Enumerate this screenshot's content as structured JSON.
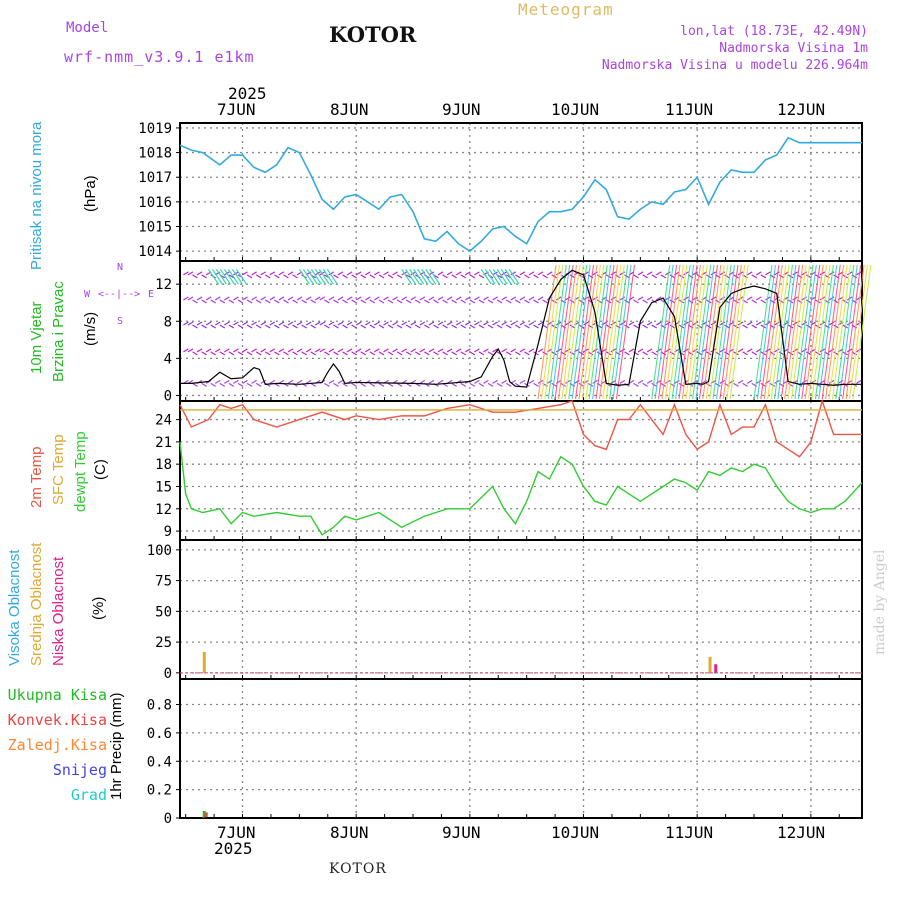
{
  "header": {
    "model_label": "Model",
    "model_name": "wrf-nmm_v3.9.1 e1km",
    "title": "KOTOR",
    "subtitle": "Meteogram",
    "location": "lon,lat (18.73E, 42.49N)",
    "elevation": "Nadmorska Visina 1m",
    "model_elevation": "Nadmorska Visina u modelu 226.964m"
  },
  "footer": {
    "station": "KOTOR",
    "watermark": "made by Angel"
  },
  "time_axis": {
    "year": "2025",
    "days": [
      "7JUN",
      "8JUN",
      "9JUN",
      "10JUN",
      "11JUN",
      "12JUN"
    ]
  },
  "panels": {
    "pressure": {
      "label": "Pritisak na nivou mora",
      "unit": "(hPa)",
      "color": "#33aadd"
    },
    "wind": {
      "label1": "10m Vjetar",
      "label2": "Brzina i Pravac",
      "unit": "(m/s)",
      "compass": {
        "n": "N",
        "w": "W",
        "e": "E",
        "s": "S",
        "arrow": "<--|-->"
      }
    },
    "temp": {
      "l1": "2m Temp",
      "l2": "SFC Temp",
      "l3": "dewpt Temp",
      "unit": "(C)"
    },
    "cloud": {
      "l1": "Visoka Oblacnost",
      "l2": "Srednja Oblacnost",
      "l3": "Niska Oblacnost",
      "unit": "(%)"
    },
    "precip": {
      "unit": "1hr Precip (mm)",
      "legend": [
        "Ukupna Kisa",
        "Konvek.Kisa",
        "Zaledj.Kisa",
        "Snijeg",
        "Grad"
      ]
    }
  },
  "colors": {
    "pressure": "#33aadd",
    "temp2m": "#ee5544",
    "sfc": "#ddaa33",
    "dewpt": "#33cc33",
    "wind_label": "#22bb22",
    "purple": "#aa44dd",
    "high_cloud": "#33aadd",
    "mid_cloud": "#ddaa33",
    "low_cloud": "#dd2288",
    "total_rain": "#22bb22",
    "conv_rain": "#ee4444",
    "freez_rain": "#ff8833",
    "snow": "#4444dd",
    "hail": "#22cccc"
  },
  "chart_data": [
    {
      "type": "line",
      "title": "",
      "ylabel": "(hPa)",
      "ylim": [
        1013.6,
        1019.2
      ],
      "yticks": [
        1014,
        1015,
        1016,
        1017,
        1018,
        1019
      ],
      "x_unit": "days (0 = 7JUN 00UTC)",
      "xlim": [
        -0.55,
        5.45
      ],
      "series": [
        {
          "name": "Pritisak na nivou mora",
          "x": [
            -0.55,
            -0.45,
            -0.35,
            -0.2,
            -0.1,
            0,
            0.1,
            0.2,
            0.3,
            0.4,
            0.5,
            0.6,
            0.7,
            0.8,
            0.9,
            1.0,
            1.1,
            1.2,
            1.3,
            1.4,
            1.5,
            1.6,
            1.7,
            1.8,
            1.9,
            2.0,
            2.1,
            2.2,
            2.3,
            2.4,
            2.5,
            2.6,
            2.7,
            2.8,
            2.9,
            3.0,
            3.1,
            3.2,
            3.3,
            3.4,
            3.5,
            3.6,
            3.7,
            3.8,
            3.9,
            4.0,
            4.1,
            4.2,
            4.3,
            4.4,
            4.5,
            4.6,
            4.7,
            4.8,
            4.9,
            5.0,
            5.1,
            5.2,
            5.3,
            5.4,
            5.45
          ],
          "values": [
            1018.3,
            1018.1,
            1018.0,
            1017.5,
            1017.9,
            1017.9,
            1017.4,
            1017.2,
            1017.5,
            1018.2,
            1018.0,
            1017.1,
            1016.1,
            1015.7,
            1016.2,
            1016.3,
            1016.0,
            1015.7,
            1016.2,
            1016.3,
            1015.6,
            1014.5,
            1014.4,
            1014.8,
            1014.3,
            1014.0,
            1014.4,
            1014.9,
            1015.0,
            1014.6,
            1014.3,
            1015.2,
            1015.6,
            1015.6,
            1015.7,
            1016.2,
            1016.9,
            1016.5,
            1015.4,
            1015.3,
            1015.7,
            1016.0,
            1015.9,
            1016.4,
            1016.5,
            1017.0,
            1015.9,
            1016.8,
            1017.3,
            1017.2,
            1017.2,
            1017.7,
            1017.9,
            1018.6,
            1018.4,
            1018.4,
            1018.4,
            1018.4,
            1018.4,
            1018.4,
            1018.4
          ]
        }
      ]
    },
    {
      "type": "line",
      "ylabel": "(m/s)",
      "ylim": [
        -0.6,
        14.5
      ],
      "yticks": [
        0,
        4,
        8,
        12
      ],
      "series": [
        {
          "name": "wind speed",
          "x": [
            -0.55,
            -0.45,
            -0.3,
            -0.2,
            -0.1,
            0,
            0.1,
            0.15,
            0.2,
            0.3,
            0.5,
            0.7,
            0.75,
            0.8,
            0.85,
            0.9,
            1.0,
            1.5,
            1.7,
            2.0,
            2.1,
            2.2,
            2.25,
            2.3,
            2.35,
            2.4,
            2.5,
            2.6,
            2.7,
            2.8,
            2.9,
            3.0,
            3.1,
            3.2,
            3.3,
            3.4,
            3.5,
            3.6,
            3.7,
            3.8,
            3.9,
            4.0,
            4.05,
            4.1,
            4.2,
            4.3,
            4.4,
            4.5,
            4.6,
            4.7,
            4.8,
            4.9,
            5.0,
            5.1,
            5.2,
            5.3,
            5.45
          ],
          "values": [
            1.3,
            1.3,
            1.5,
            2.5,
            1.8,
            1.9,
            3.0,
            2.8,
            1.2,
            1.3,
            1.2,
            1.4,
            2.5,
            3.4,
            2.6,
            1.3,
            1.4,
            1.3,
            1.2,
            1.5,
            2.0,
            4.2,
            5.0,
            3.8,
            1.5,
            1.0,
            0.9,
            5.5,
            10.5,
            12.5,
            13.5,
            13.0,
            9.0,
            1.3,
            1.1,
            1.2,
            8.0,
            10.0,
            10.5,
            8.5,
            1.2,
            1.3,
            1.2,
            1.5,
            9.5,
            11.0,
            11.5,
            11.8,
            11.5,
            11.0,
            1.5,
            1.2,
            1.3,
            1.2,
            1.1,
            1.2,
            1.2
          ]
        }
      ],
      "annotation": "colored wind barbs per hour"
    },
    {
      "type": "line",
      "ylabel": "(C)",
      "ylim": [
        7.8,
        26.5
      ],
      "yticks": [
        9,
        12,
        15,
        18,
        21,
        24
      ],
      "series": [
        {
          "name": "2m Temp",
          "x": [
            -0.55,
            -0.45,
            -0.3,
            -0.2,
            -0.1,
            0,
            0.1,
            0.3,
            0.5,
            0.7,
            0.9,
            1.0,
            1.2,
            1.4,
            1.6,
            1.8,
            2.0,
            2.2,
            2.4,
            2.6,
            2.8,
            2.9,
            3.0,
            3.1,
            3.2,
            3.3,
            3.4,
            3.5,
            3.6,
            3.7,
            3.8,
            3.9,
            4.0,
            4.1,
            4.2,
            4.3,
            4.4,
            4.5,
            4.6,
            4.7,
            4.8,
            4.9,
            5.0,
            5.1,
            5.2,
            5.3,
            5.45
          ],
          "values": [
            26,
            23,
            24,
            26,
            25.5,
            26,
            24,
            23,
            24,
            25,
            24,
            24.5,
            24,
            24.5,
            24.5,
            25.5,
            26,
            25,
            25,
            25.5,
            26,
            26.5,
            22,
            20.5,
            20,
            24,
            24,
            26,
            24,
            22,
            26,
            22,
            20,
            21,
            26,
            22,
            23,
            23,
            26,
            21,
            20,
            19,
            21,
            26.5,
            22,
            22,
            22
          ]
        },
        {
          "name": "SFC Temp",
          "x": [
            -0.55,
            5.45
          ],
          "values": [
            25.3,
            25.3
          ]
        },
        {
          "name": "dewpt Temp",
          "x": [
            -0.55,
            -0.5,
            -0.45,
            -0.35,
            -0.2,
            -0.1,
            0,
            0.1,
            0.3,
            0.5,
            0.6,
            0.7,
            0.8,
            0.9,
            1.0,
            1.2,
            1.4,
            1.6,
            1.8,
            2.0,
            2.2,
            2.3,
            2.4,
            2.5,
            2.6,
            2.7,
            2.8,
            2.9,
            3.0,
            3.1,
            3.2,
            3.3,
            3.4,
            3.5,
            3.6,
            3.7,
            3.8,
            3.9,
            4.0,
            4.1,
            4.2,
            4.3,
            4.4,
            4.5,
            4.6,
            4.7,
            4.8,
            4.9,
            5.0,
            5.1,
            5.2,
            5.3,
            5.45
          ],
          "values": [
            21,
            14,
            12,
            11.5,
            12,
            10,
            11.5,
            11,
            11.5,
            11,
            11,
            8.5,
            9.5,
            11,
            10.5,
            11.5,
            9.5,
            11,
            12,
            12,
            15,
            12,
            10,
            13,
            17,
            16,
            19,
            18,
            15,
            13,
            12.5,
            15,
            14,
            13,
            14,
            15,
            16,
            15.5,
            14.5,
            17,
            16.5,
            17.5,
            17,
            18,
            17.5,
            15,
            13,
            12,
            11.5,
            12,
            12,
            13,
            15.5
          ]
        }
      ]
    },
    {
      "type": "bar",
      "ylabel": "(%)",
      "ylim": [
        -5,
        108
      ],
      "yticks": [
        0,
        25,
        50,
        75,
        100
      ],
      "series": [
        {
          "name": "Srednja Oblacnost",
          "x": [
            -0.35,
            4.1
          ],
          "values": [
            17,
            13
          ]
        },
        {
          "name": "Niska Oblacnost",
          "x": [
            4.15
          ],
          "values": [
            7
          ]
        }
      ]
    },
    {
      "type": "bar",
      "ylabel": "1hr Precip (mm)",
      "ylim": [
        0,
        0.98
      ],
      "yticks": [
        0,
        0.2,
        0.4,
        0.6,
        0.8
      ],
      "series": [
        {
          "name": "Ukupna Kisa",
          "x": [
            -0.35
          ],
          "values": [
            0.05
          ]
        },
        {
          "name": "Konvek.Kisa",
          "x": [
            -0.35
          ],
          "values": [
            0.04
          ]
        }
      ]
    }
  ]
}
